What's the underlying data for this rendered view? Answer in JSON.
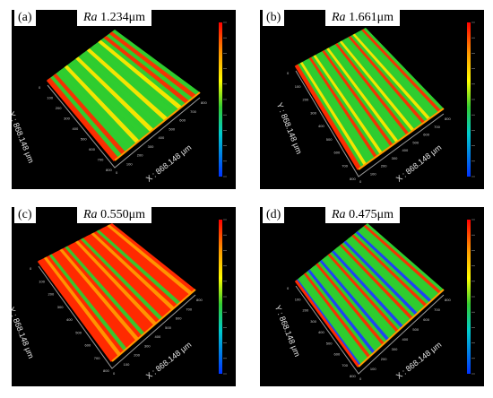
{
  "panels": [
    {
      "label": "(a)",
      "ra_symbol": "Ra",
      "ra_value": " 1.234μm",
      "x_axis": "X : 868.148 μm",
      "y_axis": "Y : 868.148 μm",
      "pattern": "green-center",
      "stripes": 12
    },
    {
      "label": "(b)",
      "ra_symbol": "Ra",
      "ra_value": " 1.661μm",
      "x_axis": "X : 868.148 μm",
      "y_axis": "Y : 868.148 μm",
      "pattern": "mixed",
      "stripes": 16
    },
    {
      "label": "(c)",
      "ra_symbol": "Ra",
      "ra_value": " 0.550μm",
      "x_axis": "X : 868.148 μm",
      "y_axis": "Y : 868.148 μm",
      "pattern": "red",
      "stripes": 14
    },
    {
      "label": "(d)",
      "ra_symbol": "Ra",
      "ra_value": " 0.475μm",
      "x_axis": "X : 868.148 μm",
      "y_axis": "Y : 868.148 μm",
      "pattern": "stripes-blue",
      "stripes": 18
    }
  ],
  "colors": {
    "red": "#ff2a00",
    "orange": "#ff9a00",
    "yellow": "#ffe600",
    "green": "#2fcc2f",
    "cyan": "#00c8c8",
    "blue": "#1e3cff",
    "panel_bg": "#000000"
  },
  "ticks": [
    "0",
    "100",
    "200",
    "300",
    "400",
    "500",
    "600",
    "700",
    "800"
  ]
}
